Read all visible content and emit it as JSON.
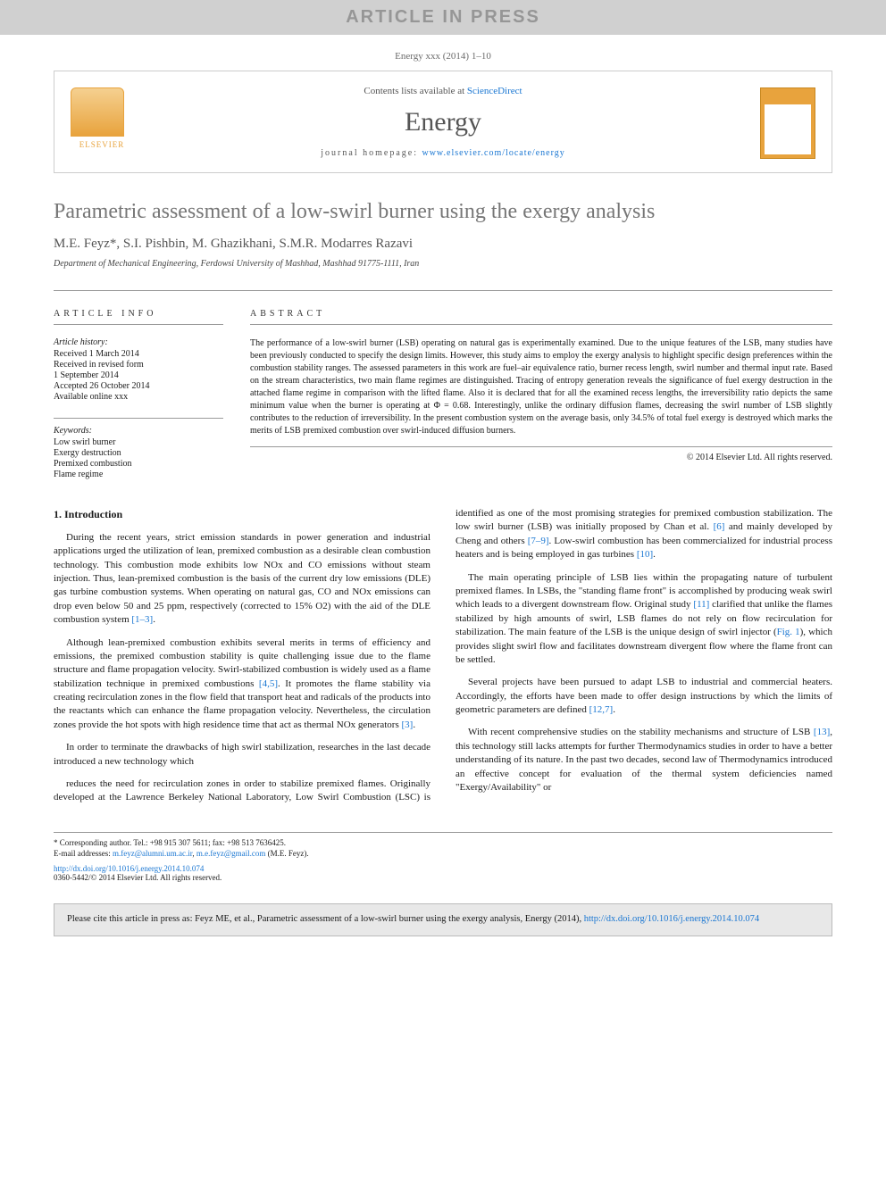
{
  "banner": "ARTICLE IN PRESS",
  "topCitation": {
    "prefix": "Energy xxx (2014) 1–10",
    "linkText": ""
  },
  "header": {
    "contentsPrefix": "Contents lists available at ",
    "contentsLink": "ScienceDirect",
    "journalName": "Energy",
    "homepagePrefix": "journal homepage: ",
    "homepageLink": "www.elsevier.com/locate/energy",
    "publisherLabel": "ELSEVIER"
  },
  "title": "Parametric assessment of a low-swirl burner using the exergy analysis",
  "authors": "M.E. Feyz*, S.I. Pishbin, M. Ghazikhani, S.M.R. Modarres Razavi",
  "affiliation": "Department of Mechanical Engineering, Ferdowsi University of Mashhad, Mashhad 91775-1111, Iran",
  "articleInfo": {
    "heading": "ARTICLE INFO",
    "historyLabel": "Article history:",
    "history": [
      "Received 1 March 2014",
      "Received in revised form",
      "1 September 2014",
      "Accepted 26 October 2014",
      "Available online xxx"
    ],
    "keywordsLabel": "Keywords:",
    "keywords": [
      "Low swirl burner",
      "Exergy destruction",
      "Premixed combustion",
      "Flame regime"
    ]
  },
  "abstract": {
    "heading": "ABSTRACT",
    "text": "The performance of a low-swirl burner (LSB) operating on natural gas is experimentally examined. Due to the unique features of the LSB, many studies have been previously conducted to specify the design limits. However, this study aims to employ the exergy analysis to highlight specific design preferences within the combustion stability ranges. The assessed parameters in this work are fuel–air equivalence ratio, burner recess length, swirl number and thermal input rate. Based on the stream characteristics, two main flame regimes are distinguished. Tracing of entropy generation reveals the significance of fuel exergy destruction in the attached flame regime in comparison with the lifted flame. Also it is declared that for all the examined recess lengths, the irreversibility ratio depicts the same minimum value when the burner is operating at Φ = 0.68. Interestingly, unlike the ordinary diffusion flames, decreasing the swirl number of LSB slightly contributes to the reduction of irreversibility. In the present combustion system on the average basis, only 34.5% of total fuel exergy is destroyed which marks the merits of LSB premixed combustion over swirl-induced diffusion burners.",
    "copyright": "© 2014 Elsevier Ltd. All rights reserved."
  },
  "intro": {
    "heading": "1. Introduction",
    "p1": "During the recent years, strict emission standards in power generation and industrial applications urged the utilization of lean, premixed combustion as a desirable clean combustion technology. This combustion mode exhibits low NOx and CO emissions without steam injection. Thus, lean-premixed combustion is the basis of the current dry low emissions (DLE) gas turbine combustion systems. When operating on natural gas, CO and NOx emissions can drop even below 50 and 25 ppm, respectively (corrected to 15% O2) with the aid of the DLE combustion system ",
    "p1link": "[1–3]",
    "p1suffix": ".",
    "p2a": "Although lean-premixed combustion exhibits several merits in terms of efficiency and emissions, the premixed combustion stability is quite challenging issue due to the flame structure and flame propagation velocity. Swirl-stabilized combustion is widely used as a flame stabilization technique in premixed combustions ",
    "p2link1": "[4,5]",
    "p2b": ". It promotes the flame stability via creating recirculation zones in the flow field that transport heat and radicals of the products into the reactants which can enhance the flame propagation velocity. Nevertheless, the circulation zones provide the hot spots with high residence time that act as thermal NOx generators ",
    "p2link2": "[3]",
    "p2suffix": ".",
    "p3": "In order to terminate the drawbacks of high swirl stabilization, researches in the last decade introduced a new technology which",
    "p4a": "reduces the need for recirculation zones in order to stabilize premixed flames. Originally developed at the Lawrence Berkeley National Laboratory, Low Swirl Combustion (LSC) is identified as one of the most promising strategies for premixed combustion stabilization. The low swirl burner (LSB) was initially proposed by Chan et al. ",
    "p4link1": "[6]",
    "p4b": " and mainly developed by Cheng and others ",
    "p4link2": "[7–9]",
    "p4c": ". Low-swirl combustion has been commercialized for industrial process heaters and is being employed in gas turbines ",
    "p4link3": "[10]",
    "p4suffix": ".",
    "p5a": "The main operating principle of LSB lies within the propagating nature of turbulent premixed flames. In LSBs, the \"standing flame front\" is accomplished by producing weak swirl which leads to a divergent downstream flow. Original study ",
    "p5link1": "[11]",
    "p5b": " clarified that unlike the flames stabilized by high amounts of swirl, LSB flames do not rely on flow recirculation for stabilization. The main feature of the LSB is the unique design of swirl injector (",
    "p5link2": "Fig. 1",
    "p5c": "), which provides slight swirl flow and facilitates downstream divergent flow where the flame front can be settled.",
    "p6a": "Several projects have been pursued to adapt LSB to industrial and commercial heaters. Accordingly, the efforts have been made to offer design instructions by which the limits of geometric parameters are defined ",
    "p6link": "[12,7]",
    "p6suffix": ".",
    "p7a": "With recent comprehensive studies on the stability mechanisms and structure of LSB ",
    "p7link": "[13]",
    "p7b": ", this technology still lacks attempts for further Thermodynamics studies in order to have a better understanding of its nature. In the past two decades, second law of Thermodynamics introduced an effective concept for evaluation of the thermal system deficiencies named \"Exergy/Availability\" or"
  },
  "corresponding": {
    "label": "* Corresponding author. Tel.: +98 915 307 5611; fax: +98 513 7636425.",
    "emailLabel": "E-mail addresses: ",
    "email1": "m.feyz@alumni.um.ac.ir",
    "sep": ", ",
    "email2": "m.e.feyz@gmail.com",
    "suffix": " (M.E. Feyz)."
  },
  "doi": {
    "link": "http://dx.doi.org/10.1016/j.energy.2014.10.074",
    "issn": "0360-5442/© 2014 Elsevier Ltd. All rights reserved."
  },
  "footerCite": {
    "prefix": "Please cite this article in press as: Feyz ME, et al., Parametric assessment of a low-swirl burner using the exergy analysis, Energy (2014), ",
    "link": "http://dx.doi.org/10.1016/j.energy.2014.10.074"
  },
  "colors": {
    "bannerBg": "#d0d0d0",
    "bannerText": "#969696",
    "link": "#1976d2",
    "titleText": "#767676",
    "footerBg": "#e8e8e8"
  }
}
